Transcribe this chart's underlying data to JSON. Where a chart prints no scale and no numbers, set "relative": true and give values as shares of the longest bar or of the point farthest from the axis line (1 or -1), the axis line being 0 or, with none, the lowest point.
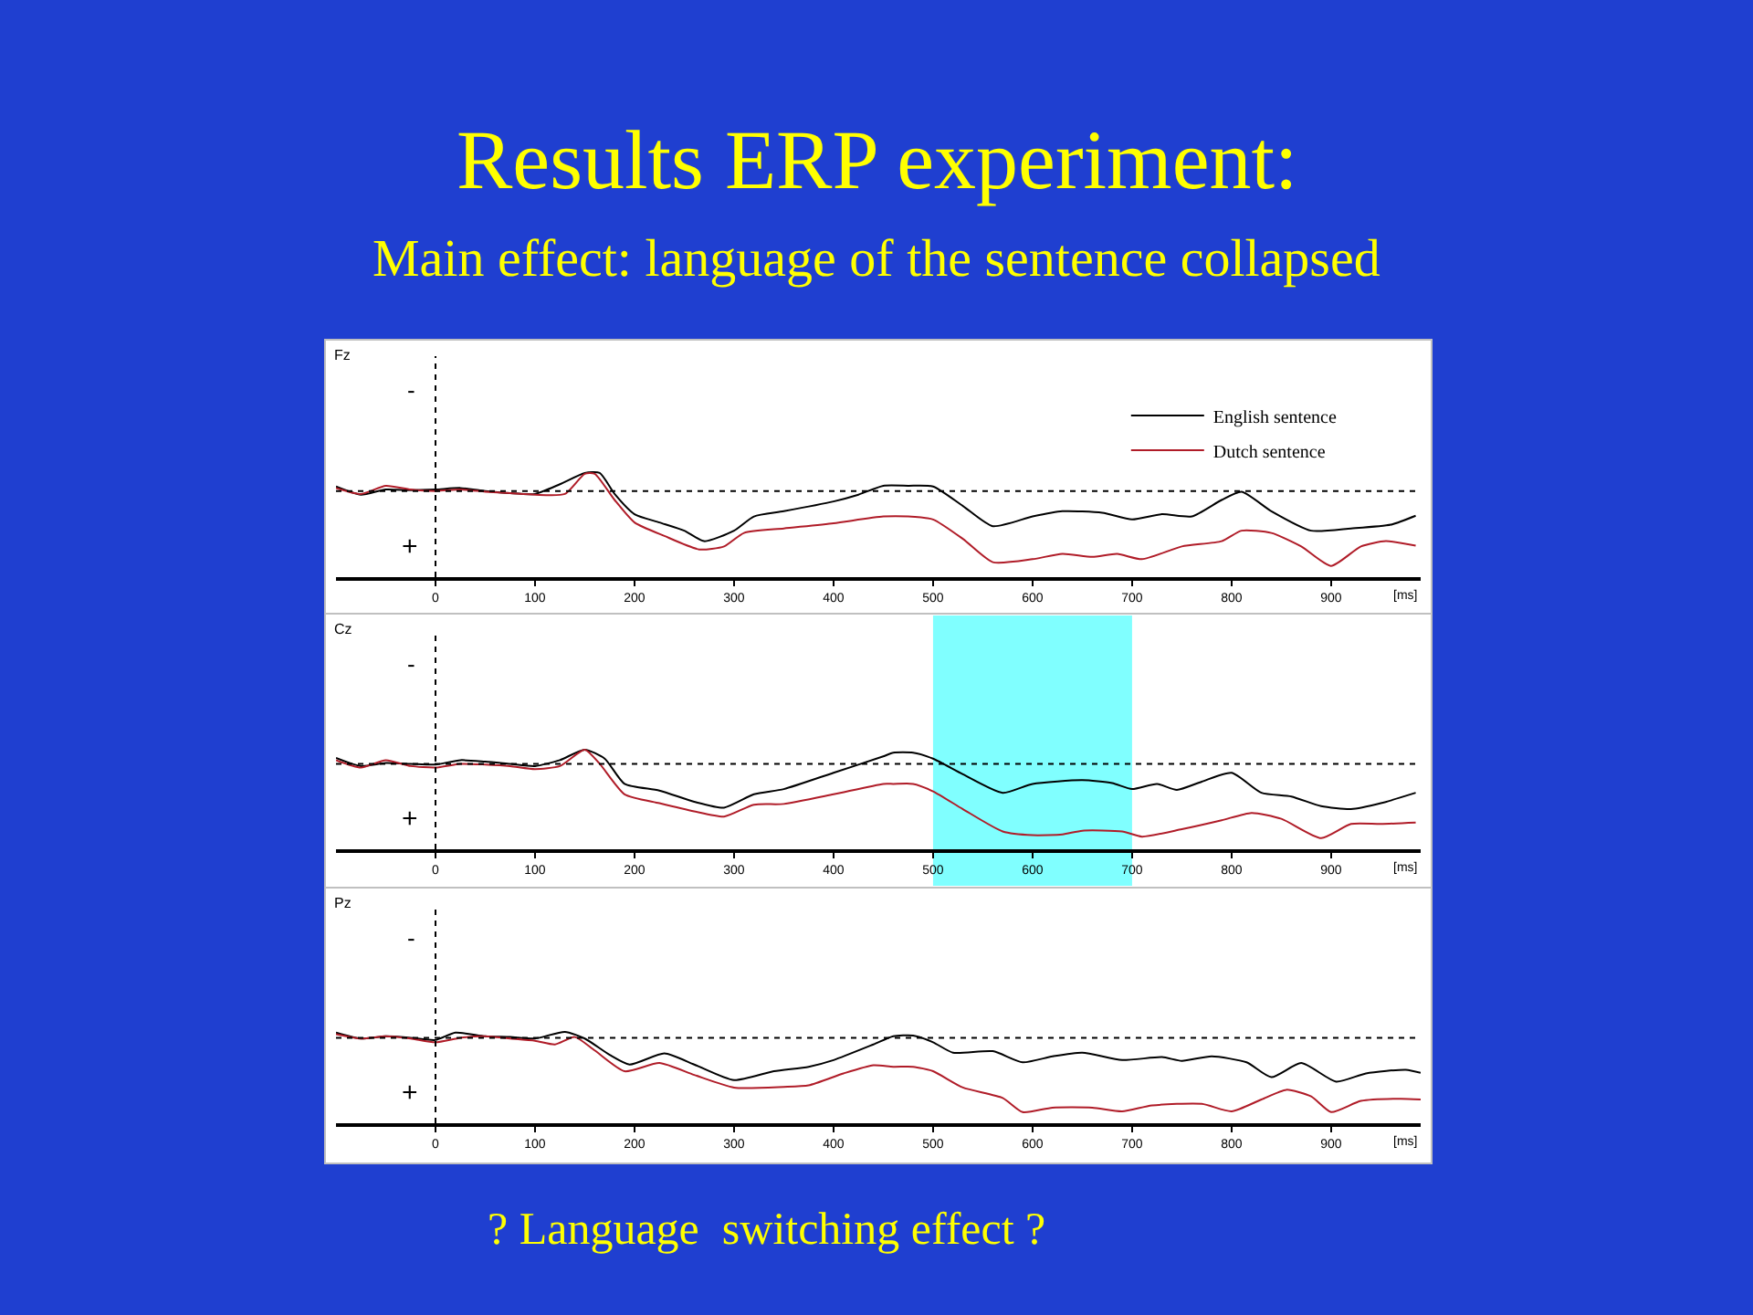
{
  "chart_data": [
    {
      "type": "line",
      "title": "Results ERP experiment:",
      "subtitle": "Main effect: language of the sentence collapsed",
      "relative": true,
      "legend": "top right",
      "grid": false,
      "line_style": "solid",
      "marker": "none",
      "annotations": [
        "Fz",
        "-",
        "+"
      ],
      "xlabel": "[ms]",
      "xlim": [
        -100,
        990
      ],
      "xticks": [
        0,
        100,
        200,
        300,
        400,
        500,
        600,
        700,
        800,
        900
      ],
      "ref_lines": [
        {
          "axis": "x",
          "value": 0,
          "line_style": "dotted",
          "color": "#000000"
        }
      ],
      "series": [
        {
          "name": "English sentence",
          "color": "#000000",
          "x": [
            -100,
            -75,
            -50,
            -25,
            0,
            25,
            50,
            75,
            100,
            125,
            150,
            165,
            180,
            200,
            225,
            250,
            270,
            300,
            320,
            350,
            400,
            425,
            450,
            475,
            500,
            530,
            560,
            600,
            630,
            670,
            700,
            730,
            760,
            790,
            810,
            840,
            880,
            920,
            960,
            985
          ],
          "values": [
            0.06,
            -0.05,
            0.02,
            0.01,
            0.02,
            0.04,
            0,
            -0.03,
            -0.04,
            0.09,
            0.24,
            0.24,
            -0.04,
            -0.31,
            -0.42,
            -0.53,
            -0.67,
            -0.53,
            -0.34,
            -0.27,
            -0.14,
            -0.05,
            0.07,
            0.07,
            0.06,
            -0.2,
            -0.47,
            -0.34,
            -0.27,
            -0.29,
            -0.38,
            -0.31,
            -0.34,
            -0.12,
            -0.01,
            -0.27,
            -0.53,
            -0.5,
            -0.45,
            -0.33
          ]
        },
        {
          "name": "Dutch sentence",
          "color": "#b01c28",
          "x": [
            -100,
            -75,
            -50,
            -25,
            0,
            25,
            50,
            75,
            100,
            130,
            150,
            160,
            180,
            200,
            230,
            265,
            290,
            310,
            350,
            400,
            450,
            475,
            500,
            530,
            560,
            600,
            630,
            660,
            685,
            710,
            750,
            790,
            810,
            840,
            870,
            900,
            930,
            955,
            985
          ],
          "values": [
            0.04,
            -0.04,
            0.07,
            0.02,
            0,
            0.02,
            -0.01,
            -0.03,
            -0.05,
            -0.04,
            0.23,
            0.23,
            -0.12,
            -0.42,
            -0.6,
            -0.78,
            -0.74,
            -0.56,
            -0.5,
            -0.43,
            -0.34,
            -0.34,
            -0.38,
            -0.64,
            -0.95,
            -0.91,
            -0.84,
            -0.88,
            -0.84,
            -0.91,
            -0.74,
            -0.67,
            -0.53,
            -0.56,
            -0.74,
            -1,
            -0.74,
            -0.67,
            -0.73
          ]
        }
      ]
    },
    {
      "type": "line",
      "relative": true,
      "legend": false,
      "grid": false,
      "line_style": "solid",
      "marker": "none",
      "annotations": [
        "Cz",
        "-",
        "+"
      ],
      "xlabel": "[ms]",
      "xlim": [
        -100,
        990
      ],
      "xticks": [
        0,
        100,
        200,
        300,
        400,
        500,
        600,
        700,
        800,
        900
      ],
      "ref_lines": [
        {
          "axis": "x",
          "value": 0,
          "line_style": "dotted",
          "color": "#000000"
        }
      ],
      "bands": [
        {
          "axis": "x",
          "from": 500,
          "to": 700,
          "color": "#80ffff"
        }
      ],
      "series": [
        {
          "color": "#000000",
          "x": [
            -100,
            -75,
            -50,
            -25,
            0,
            25,
            50,
            75,
            100,
            125,
            150,
            170,
            190,
            225,
            260,
            290,
            320,
            350,
            400,
            450,
            460,
            480,
            500,
            530,
            570,
            600,
            650,
            680,
            700,
            725,
            745,
            770,
            800,
            830,
            860,
            890,
            920,
            950,
            985
          ],
          "values": [
            0.08,
            -0.03,
            0.01,
            0,
            -0.01,
            0.05,
            0.03,
            0,
            -0.03,
            0.05,
            0.19,
            0.07,
            -0.27,
            -0.36,
            -0.51,
            -0.59,
            -0.41,
            -0.34,
            -0.12,
            0.1,
            0.15,
            0.15,
            0.07,
            -0.14,
            -0.39,
            -0.27,
            -0.22,
            -0.26,
            -0.34,
            -0.27,
            -0.35,
            -0.24,
            -0.12,
            -0.39,
            -0.44,
            -0.57,
            -0.61,
            -0.53,
            -0.39
          ]
        },
        {
          "color": "#b01c28",
          "x": [
            -100,
            -75,
            -50,
            -25,
            0,
            25,
            50,
            75,
            100,
            125,
            150,
            165,
            190,
            225,
            260,
            290,
            320,
            350,
            400,
            450,
            460,
            480,
            500,
            530,
            570,
            600,
            630,
            650,
            690,
            710,
            750,
            790,
            820,
            850,
            890,
            920,
            950,
            985
          ],
          "values": [
            0.05,
            -0.05,
            0.05,
            -0.03,
            -0.05,
            0,
            -0.01,
            -0.03,
            -0.07,
            -0.03,
            0.19,
            0,
            -0.41,
            -0.53,
            -0.64,
            -0.71,
            -0.55,
            -0.54,
            -0.41,
            -0.27,
            -0.27,
            -0.27,
            -0.37,
            -0.61,
            -0.91,
            -0.96,
            -0.95,
            -0.9,
            -0.91,
            -0.98,
            -0.88,
            -0.76,
            -0.66,
            -0.74,
            -1,
            -0.81,
            -0.81,
            -0.79
          ]
        }
      ]
    },
    {
      "type": "line",
      "relative": true,
      "legend": false,
      "grid": false,
      "line_style": "solid",
      "marker": "none",
      "annotations": [
        "Pz",
        "-",
        "+",
        "? Language  switching effect ?"
      ],
      "xlabel": "[ms]",
      "xlim": [
        -100,
        990
      ],
      "xticks": [
        0,
        100,
        200,
        300,
        400,
        500,
        600,
        700,
        800,
        900
      ],
      "ref_lines": [
        {
          "axis": "x",
          "value": 0,
          "line_style": "dotted",
          "color": "#000000"
        }
      ],
      "series": [
        {
          "color": "#000000",
          "x": [
            -100,
            -75,
            -50,
            -25,
            0,
            20,
            50,
            75,
            100,
            130,
            150,
            175,
            195,
            230,
            260,
            300,
            340,
            375,
            400,
            440,
            460,
            480,
            500,
            520,
            560,
            590,
            620,
            650,
            690,
            730,
            750,
            780,
            815,
            840,
            870,
            905,
            935,
            975,
            990
          ],
          "values": [
            0.07,
            -0.01,
            0.02,
            0,
            -0.03,
            0.07,
            0.02,
            0.01,
            -0.01,
            0.08,
            -0.01,
            -0.23,
            -0.36,
            -0.21,
            -0.36,
            -0.57,
            -0.45,
            -0.39,
            -0.3,
            -0.09,
            0.02,
            0.03,
            -0.06,
            -0.2,
            -0.18,
            -0.33,
            -0.25,
            -0.2,
            -0.3,
            -0.26,
            -0.31,
            -0.25,
            -0.33,
            -0.53,
            -0.34,
            -0.59,
            -0.48,
            -0.43,
            -0.47
          ]
        },
        {
          "color": "#b01c28",
          "x": [
            -100,
            -75,
            -50,
            -25,
            0,
            25,
            50,
            75,
            100,
            120,
            140,
            160,
            190,
            225,
            260,
            300,
            350,
            375,
            410,
            440,
            460,
            480,
            500,
            530,
            570,
            590,
            620,
            660,
            690,
            720,
            770,
            800,
            830,
            855,
            880,
            900,
            930,
            970,
            990
          ],
          "values": [
            0.05,
            -0.01,
            0.02,
            -0.01,
            -0.06,
            0,
            0.02,
            -0.01,
            -0.04,
            -0.09,
            0.01,
            -0.17,
            -0.45,
            -0.34,
            -0.5,
            -0.67,
            -0.66,
            -0.64,
            -0.48,
            -0.37,
            -0.39,
            -0.39,
            -0.45,
            -0.67,
            -0.81,
            -1,
            -0.94,
            -0.94,
            -0.99,
            -0.91,
            -0.89,
            -0.99,
            -0.83,
            -0.7,
            -0.79,
            -1,
            -0.85,
            -0.82,
            -0.83
          ]
        }
      ]
    }
  ]
}
